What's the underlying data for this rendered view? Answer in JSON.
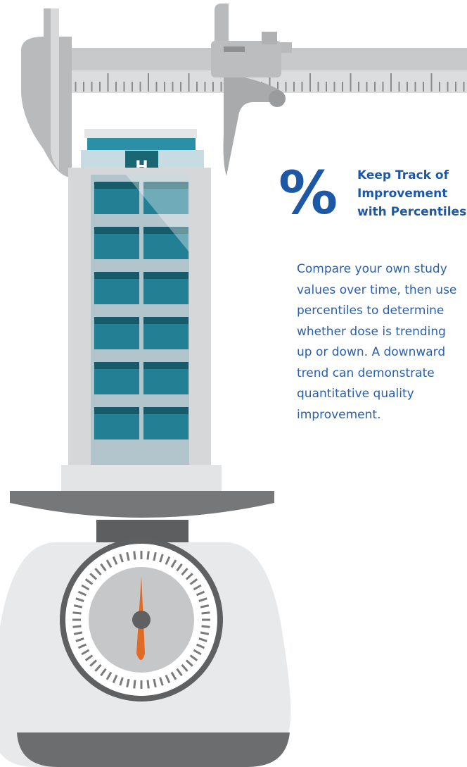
{
  "illustration": {
    "building_sign": "H"
  },
  "panel": {
    "icon": "%",
    "heading_lines": [
      "Keep Track of",
      "Improvement",
      "with Percentiles"
    ],
    "body_lines": [
      "Compare your own study",
      "values over time, then use",
      "percentiles to determine",
      "whether dose is trending",
      "up or down. A downward",
      "trend can demonstrate",
      "quantitative quality",
      "improvement."
    ]
  }
}
